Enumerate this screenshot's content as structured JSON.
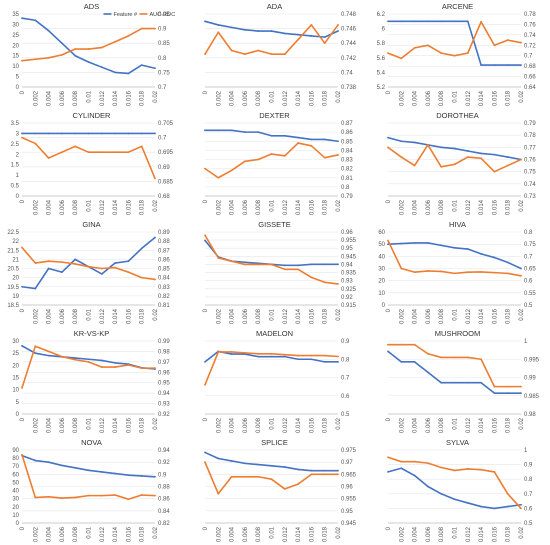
{
  "colors": {
    "feature": "#4472c4",
    "auc": "#ed7d31",
    "grid": "#e6e6e6",
    "axis": "#bfbfbf"
  },
  "legend": {
    "feature": "Feature #",
    "auc": "AUC-ROC"
  },
  "chart_data": [
    {
      "type": "line",
      "title": "ADS",
      "categories": [
        "0",
        "0.002",
        "0.004",
        "0.006",
        "0.008",
        "0.01",
        "0.012",
        "0.014",
        "0.016",
        "0.018",
        "0.02"
      ],
      "yticks_left": [
        "0",
        "5",
        "10",
        "15",
        "20",
        "25",
        "30",
        "35"
      ],
      "ylim_left": [
        0,
        35
      ],
      "yticks_right": [
        "0.7",
        "0.75",
        "0.8",
        "0.85",
        "0.9",
        "0.95"
      ],
      "ylim_right": [
        0.7,
        0.95
      ],
      "legend_shown": true,
      "series": [
        {
          "name": "Feature #",
          "axis": "left",
          "values": [
            33,
            32,
            27,
            21,
            15,
            12,
            9.5,
            7,
            6.5,
            10.5,
            9
          ]
        },
        {
          "name": "AUC-ROC",
          "axis": "right",
          "values": [
            0.79,
            0.795,
            0.8,
            0.81,
            0.83,
            0.83,
            0.835,
            0.855,
            0.875,
            0.9,
            0.9
          ]
        }
      ]
    },
    {
      "type": "line",
      "title": "ADA",
      "categories": [
        "0",
        "0.002",
        "0.004",
        "0.006",
        "0.008",
        "0.01",
        "0.012",
        "0.014",
        "0.016",
        "0.018",
        "0.02"
      ],
      "yticks_left": [],
      "ylim_left": [
        0,
        30
      ],
      "yticks_right": [
        "0.738",
        "0.74",
        "0.742",
        "0.744",
        "0.746",
        "0.748"
      ],
      "ylim_right": [
        0.738,
        0.748
      ],
      "series": [
        {
          "name": "Feature #",
          "axis": "left",
          "values": [
            27,
            25.5,
            24.5,
            23.5,
            23,
            23,
            22,
            21.5,
            21,
            20.5,
            23
          ]
        },
        {
          "name": "AUC-ROC",
          "axis": "right",
          "values": [
            0.7425,
            0.7455,
            0.743,
            0.7425,
            0.743,
            0.7425,
            0.7425,
            0.7445,
            0.7465,
            0.744,
            0.7465
          ]
        }
      ]
    },
    {
      "type": "line",
      "title": "ARCENE",
      "categories": [
        "0",
        "0.002",
        "0.004",
        "0.006",
        "0.008",
        "0.01",
        "0.012",
        "0.014",
        "0.016",
        "0.018",
        "0.02"
      ],
      "yticks_left": [
        "5.2",
        "5.4",
        "5.6",
        "5.8",
        "6",
        "6.2"
      ],
      "ylim_left": [
        5.2,
        6.2
      ],
      "yticks_right": [
        "0.64",
        "0.66",
        "0.68",
        "0.7",
        "0.72",
        "0.74",
        "0.76",
        "0.78"
      ],
      "ylim_right": [
        0.64,
        0.78
      ],
      "series": [
        {
          "name": "Feature #",
          "axis": "left",
          "values": [
            6.1,
            6.1,
            6.1,
            6.1,
            6.1,
            6.1,
            6.1,
            5.5,
            5.5,
            5.5,
            5.5
          ]
        },
        {
          "name": "AUC-ROC",
          "axis": "right",
          "values": [
            0.705,
            0.695,
            0.715,
            0.72,
            0.705,
            0.7,
            0.705,
            0.765,
            0.72,
            0.73,
            0.725
          ]
        }
      ]
    },
    {
      "type": "line",
      "title": "CYLINDER",
      "categories": [
        "0",
        "0.002",
        "0.004",
        "0.006",
        "0.008",
        "0.01",
        "0.012",
        "0.014",
        "0.016",
        "0.018",
        "0.02"
      ],
      "yticks_left": [
        "0",
        "0.5",
        "1",
        "1.5",
        "2",
        "2.5",
        "3",
        "3.5"
      ],
      "ylim_left": [
        0,
        3.5
      ],
      "yticks_right": [
        "0.68",
        "0.685",
        "0.69",
        "0.695",
        "0.7",
        "0.705"
      ],
      "ylim_right": [
        0.68,
        0.705
      ],
      "series": [
        {
          "name": "Feature #",
          "axis": "left",
          "values": [
            3,
            3,
            3,
            3,
            3,
            3,
            3,
            3,
            3,
            3,
            3
          ]
        },
        {
          "name": "AUC-ROC",
          "axis": "right",
          "values": [
            0.7,
            0.698,
            0.693,
            0.695,
            0.697,
            0.695,
            0.695,
            0.695,
            0.695,
            0.697,
            0.686
          ]
        }
      ]
    },
    {
      "type": "line",
      "title": "DEXTER",
      "categories": [
        "0",
        "0.002",
        "0.004",
        "0.006",
        "0.008",
        "0.01",
        "0.012",
        "0.014",
        "0.016",
        "0.018",
        "0.02"
      ],
      "yticks_left": [],
      "ylim_left": [
        0,
        20
      ],
      "yticks_right": [
        "0.79",
        "0.8",
        "0.81",
        "0.82",
        "0.83",
        "0.84",
        "0.85",
        "0.86",
        "0.87"
      ],
      "ylim_right": [
        0.79,
        0.87
      ],
      "series": [
        {
          "name": "Feature #",
          "axis": "left",
          "values": [
            18,
            18,
            18,
            17.5,
            17.5,
            16.5,
            16.5,
            16,
            15.5,
            15.5,
            15
          ]
        },
        {
          "name": "AUC-ROC",
          "axis": "right",
          "values": [
            0.82,
            0.81,
            0.818,
            0.828,
            0.83,
            0.836,
            0.834,
            0.848,
            0.845,
            0.832,
            0.835
          ]
        }
      ]
    },
    {
      "type": "line",
      "title": "DOROTHEA",
      "categories": [
        "0",
        "0.002",
        "0.004",
        "0.006",
        "0.008",
        "0.01",
        "0.012",
        "0.014",
        "0.016",
        "0.018",
        "0.02"
      ],
      "yticks_left": [],
      "ylim_left": [
        0,
        30
      ],
      "yticks_right": [
        "0.73",
        "0.74",
        "0.75",
        "0.76",
        "0.77",
        "0.78",
        "0.79"
      ],
      "ylim_right": [
        0.73,
        0.79
      ],
      "series": [
        {
          "name": "Feature #",
          "axis": "left",
          "values": [
            24,
            22.5,
            22,
            21,
            20,
            19.5,
            18.5,
            17.5,
            17,
            16,
            15
          ]
        },
        {
          "name": "AUC-ROC",
          "axis": "right",
          "values": [
            0.77,
            0.762,
            0.755,
            0.772,
            0.754,
            0.756,
            0.762,
            0.761,
            0.75,
            0.755,
            0.76
          ]
        }
      ]
    },
    {
      "type": "line",
      "title": "GINA",
      "categories": [
        "0",
        "0.002",
        "0.004",
        "0.006",
        "0.008",
        "0.01",
        "0.012",
        "0.014",
        "0.016",
        "0.018",
        "0.02"
      ],
      "yticks_left": [
        "18.5",
        "19",
        "19.5",
        "20",
        "20.5",
        "21",
        "21.5",
        "22",
        "22.5"
      ],
      "ylim_left": [
        18.5,
        22.5
      ],
      "yticks_right": [
        "0.81",
        "0.82",
        "0.83",
        "0.84",
        "0.85",
        "0.86",
        "0.87",
        "0.88",
        "0.89"
      ],
      "ylim_right": [
        0.81,
        0.89
      ],
      "series": [
        {
          "name": "Feature #",
          "axis": "left",
          "values": [
            19.5,
            19.4,
            20.5,
            20.3,
            21.0,
            20.6,
            20.2,
            20.8,
            20.9,
            21.6,
            22.2
          ]
        },
        {
          "name": "AUC-ROC",
          "axis": "right",
          "values": [
            0.873,
            0.856,
            0.858,
            0.857,
            0.855,
            0.852,
            0.85,
            0.851,
            0.846,
            0.84,
            0.838
          ]
        }
      ]
    },
    {
      "type": "line",
      "title": "GISSETE",
      "categories": [
        "0",
        "0.002",
        "0.004",
        "0.006",
        "0.008",
        "0.01",
        "0.012",
        "0.014",
        "0.016",
        "0.018",
        "0.02"
      ],
      "yticks_left": [],
      "ylim_left": [
        0,
        35
      ],
      "yticks_right": [
        "0.915",
        "0.92",
        "0.925",
        "0.93",
        "0.935",
        "0.94",
        "0.945",
        "0.95",
        "0.955",
        "0.96"
      ],
      "ylim_right": [
        0.915,
        0.96
      ],
      "series": [
        {
          "name": "Feature #",
          "axis": "left",
          "values": [
            31,
            23,
            21,
            20.5,
            20,
            19.5,
            19,
            19,
            19.5,
            19.5,
            19.5
          ]
        },
        {
          "name": "AUC-ROC",
          "axis": "right",
          "values": [
            0.958,
            0.944,
            0.942,
            0.94,
            0.94,
            0.94,
            0.937,
            0.937,
            0.932,
            0.929,
            0.928
          ]
        }
      ]
    },
    {
      "type": "line",
      "title": "HIVA",
      "categories": [
        "0",
        "0.002",
        "0.004",
        "0.006",
        "0.008",
        "0.01",
        "0.012",
        "0.014",
        "0.016",
        "0.018",
        "0.02"
      ],
      "yticks_left": [
        "0",
        "10",
        "20",
        "30",
        "40",
        "50",
        "60"
      ],
      "ylim_left": [
        0,
        60
      ],
      "yticks_right": [
        "0.5",
        "0.55",
        "0.6",
        "0.65",
        "0.7",
        "0.75",
        "0.8"
      ],
      "ylim_right": [
        0.5,
        0.8
      ],
      "series": [
        {
          "name": "Feature #",
          "axis": "left",
          "values": [
            50,
            50.5,
            51,
            51,
            49,
            47,
            46,
            42,
            39,
            35,
            30
          ]
        },
        {
          "name": "AUC-ROC",
          "axis": "right",
          "values": [
            0.765,
            0.65,
            0.635,
            0.64,
            0.638,
            0.63,
            0.635,
            0.636,
            0.633,
            0.63,
            0.62
          ]
        }
      ]
    },
    {
      "type": "line",
      "title": "KR-VS-KP",
      "categories": [
        "0",
        "0.002",
        "0.004",
        "0.006",
        "0.008",
        "0.01",
        "0.012",
        "0.014",
        "0.016",
        "0.018",
        "0.02"
      ],
      "yticks_left": [
        "0",
        "5",
        "10",
        "15",
        "20",
        "25",
        "30"
      ],
      "ylim_left": [
        0,
        30
      ],
      "yticks_right": [
        "0.92",
        "0.93",
        "0.94",
        "0.95",
        "0.96",
        "0.97",
        "0.98",
        "0.99"
      ],
      "ylim_right": [
        0.92,
        0.99
      ],
      "series": [
        {
          "name": "Feature #",
          "axis": "left",
          "values": [
            28,
            25,
            24,
            23.5,
            23,
            22.5,
            22,
            21,
            20.5,
            19,
            18.5
          ]
        },
        {
          "name": "AUC-ROC",
          "axis": "right",
          "values": [
            0.945,
            0.985,
            0.98,
            0.975,
            0.972,
            0.97,
            0.965,
            0.965,
            0.967,
            0.964,
            0.964
          ]
        }
      ]
    },
    {
      "type": "line",
      "title": "MADELON",
      "categories": [
        "0",
        "0.002",
        "0.004",
        "0.006",
        "0.008",
        "0.01",
        "0.012",
        "0.014",
        "0.016",
        "0.018",
        "0.02"
      ],
      "yticks_left": [],
      "ylim_left": [
        0,
        14
      ],
      "yticks_right": [
        "0.5",
        "0.6",
        "0.7",
        "0.8",
        "0.9"
      ],
      "ylim_right": [
        0.5,
        0.9
      ],
      "series": [
        {
          "name": "Feature #",
          "axis": "left",
          "values": [
            10,
            12,
            11.5,
            11.5,
            11,
            11,
            11,
            10.5,
            10.5,
            10,
            10
          ]
        },
        {
          "name": "AUC-ROC",
          "axis": "right",
          "values": [
            0.66,
            0.84,
            0.84,
            0.835,
            0.83,
            0.83,
            0.825,
            0.82,
            0.82,
            0.82,
            0.815
          ]
        }
      ]
    },
    {
      "type": "line",
      "title": "MUSHROOM",
      "categories": [
        "0",
        "0.002",
        "0.004",
        "0.006",
        "0.008",
        "0.01",
        "0.012",
        "0.014",
        "0.016",
        "0.018",
        "0.02"
      ],
      "yticks_left": [],
      "ylim_left": [
        0,
        7
      ],
      "yticks_right": [
        "0.98",
        "0.985",
        "0.99",
        "0.995",
        "1"
      ],
      "ylim_right": [
        0.98,
        1.0
      ],
      "series": [
        {
          "name": "Feature #",
          "axis": "left",
          "values": [
            6,
            5,
            5,
            4,
            3,
            3,
            3,
            3,
            2,
            2,
            2
          ]
        },
        {
          "name": "AUC-ROC",
          "axis": "right",
          "values": [
            0.999,
            0.999,
            0.999,
            0.9965,
            0.9955,
            0.9955,
            0.9955,
            0.995,
            0.9875,
            0.9875,
            0.9875
          ]
        }
      ]
    },
    {
      "type": "line",
      "title": "NOVA",
      "categories": [
        "0",
        "0.002",
        "0.004",
        "0.006",
        "0.008",
        "0.01",
        "0.012",
        "0.014",
        "0.016",
        "0.018",
        "0.02"
      ],
      "yticks_left": [
        "0",
        "10",
        "20",
        "30",
        "40",
        "50",
        "60",
        "70",
        "80",
        "90"
      ],
      "ylim_left": [
        0,
        90
      ],
      "yticks_right": [
        "0.82",
        "0.84",
        "0.86",
        "0.88",
        "0.9",
        "0.92",
        "0.94"
      ],
      "ylim_right": [
        0.82,
        0.94
      ],
      "series": [
        {
          "name": "Feature #",
          "axis": "left",
          "values": [
            83,
            77,
            75,
            71,
            68,
            65,
            63,
            61,
            59,
            58,
            57
          ]
        },
        {
          "name": "AUC-ROC",
          "axis": "right",
          "values": [
            0.932,
            0.862,
            0.863,
            0.861,
            0.862,
            0.865,
            0.865,
            0.866,
            0.859,
            0.866,
            0.865
          ]
        }
      ]
    },
    {
      "type": "line",
      "title": "SPLICE",
      "categories": [
        "0",
        "0.002",
        "0.004",
        "0.006",
        "0.008",
        "0.01",
        "0.012",
        "0.014",
        "0.016",
        "0.018",
        "0.02"
      ],
      "yticks_left": [],
      "ylim_left": [
        0,
        60
      ],
      "yticks_right": [
        "0.945",
        "0.95",
        "0.955",
        "0.96",
        "0.965",
        "0.97",
        "0.975"
      ],
      "ylim_right": [
        0.945,
        0.975
      ],
      "series": [
        {
          "name": "Feature #",
          "axis": "left",
          "values": [
            58,
            53,
            51,
            49,
            48,
            47,
            46,
            44,
            43,
            43,
            43
          ]
        },
        {
          "name": "AUC-ROC",
          "axis": "right",
          "values": [
            0.97,
            0.957,
            0.964,
            0.964,
            0.964,
            0.963,
            0.959,
            0.961,
            0.965,
            0.965,
            0.965
          ]
        }
      ]
    },
    {
      "type": "line",
      "title": "SYLVA",
      "categories": [
        "0",
        "0.002",
        "0.004",
        "0.006",
        "0.008",
        "0.01",
        "0.012",
        "0.014",
        "0.016",
        "0.018",
        "0.02"
      ],
      "yticks_left": [],
      "ylim_left": [
        0,
        20
      ],
      "yticks_right": [
        "0.5",
        "0.6",
        "0.7",
        "0.8",
        "0.9",
        "1"
      ],
      "ylim_right": [
        0.5,
        1.0
      ],
      "series": [
        {
          "name": "Feature #",
          "axis": "left",
          "values": [
            14,
            15,
            13,
            10,
            8,
            6.5,
            5.5,
            4.5,
            4,
            4.5,
            5
          ]
        },
        {
          "name": "AUC-ROC",
          "axis": "right",
          "values": [
            0.95,
            0.92,
            0.92,
            0.91,
            0.88,
            0.86,
            0.87,
            0.865,
            0.85,
            0.7,
            0.6
          ]
        }
      ]
    }
  ]
}
